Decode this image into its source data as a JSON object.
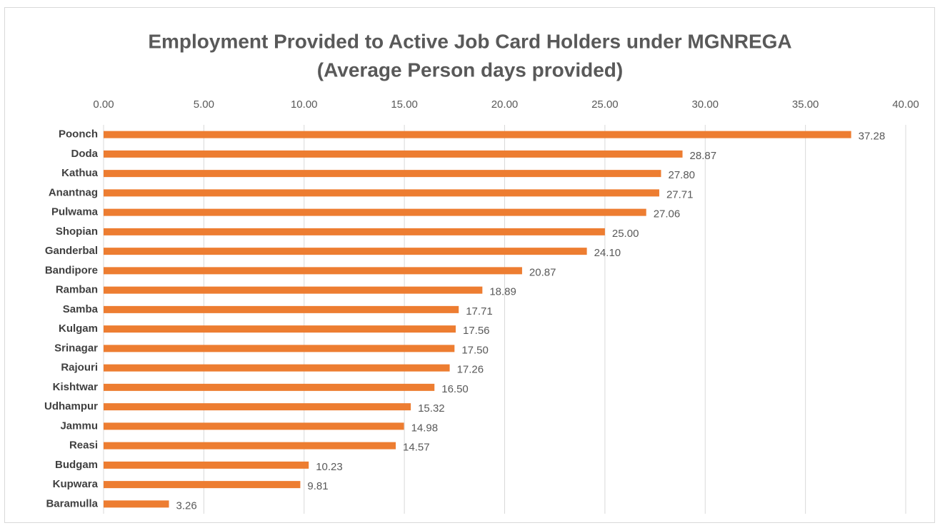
{
  "chart_data": {
    "type": "hbar",
    "title": "Employment Provided to Active Job Card Holders under MGNREGA",
    "subtitle": "(Average Person days provided)",
    "categories": [
      "Poonch",
      "Doda",
      "Kathua",
      "Anantnag",
      "Pulwama",
      "Shopian",
      "Ganderbal",
      "Bandipore",
      "Ramban",
      "Samba",
      "Kulgam",
      "Srinagar",
      "Rajouri",
      "Kishtwar",
      "Udhampur",
      "Jammu",
      "Reasi",
      "Budgam",
      "Kupwara",
      "Baramulla"
    ],
    "values": [
      37.28,
      28.87,
      27.8,
      27.71,
      27.06,
      25.0,
      24.1,
      20.87,
      18.89,
      17.71,
      17.56,
      17.5,
      17.26,
      16.5,
      15.32,
      14.98,
      14.57,
      10.23,
      9.81,
      3.26
    ],
    "value_labels": [
      "37.28",
      "28.87",
      "27.80",
      "27.71",
      "27.06",
      "25.00",
      "24.10",
      "20.87",
      "18.89",
      "17.71",
      "17.56",
      "17.50",
      "17.26",
      "16.50",
      "15.32",
      "14.98",
      "14.57",
      "10.23",
      "9.81",
      "3.26"
    ],
    "color": "#ED7D31",
    "xlim": [
      0,
      40
    ],
    "xticks": [
      {
        "value": 0,
        "label": "0.00"
      },
      {
        "value": 5,
        "label": "5.00"
      },
      {
        "value": 10,
        "label": "10.00"
      },
      {
        "value": 15,
        "label": "15.00"
      },
      {
        "value": 20,
        "label": "20.00"
      },
      {
        "value": 25,
        "label": "25.00"
      },
      {
        "value": 30,
        "label": "30.00"
      },
      {
        "value": 35,
        "label": "35.00"
      },
      {
        "value": 40,
        "label": "40.00"
      }
    ],
    "grid": true
  }
}
